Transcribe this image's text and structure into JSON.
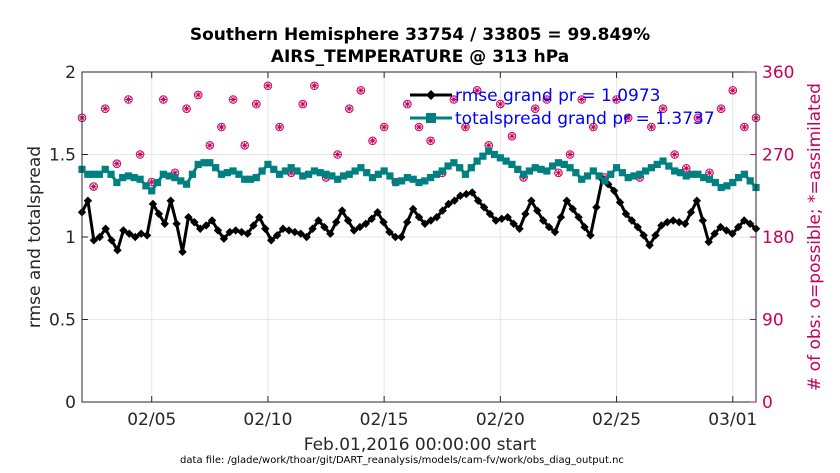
{
  "chart_data": {
    "type": "line",
    "title": "Southern Hemisphere 33754 / 33805 = 99.849%",
    "subtitle": "AIRS_TEMPERATURE @ 313 hPa",
    "xlabel": "Feb.01,2016 00:00:00 start",
    "ylabel": "rmse and totalspread",
    "y2label": "# of obs: o=possible; *=assimilated",
    "footer": "data file: /glade/work/thoar/git/DART_reanalysis/models/cam-fv/work/obs_diag_output.nc",
    "xlim": [
      1,
      30
    ],
    "ylim": [
      0,
      2
    ],
    "y2lim": [
      0,
      360
    ],
    "x_ticks": [
      4,
      9,
      14,
      19,
      24,
      29
    ],
    "x_tick_labels": [
      "02/05",
      "02/10",
      "02/15",
      "02/20",
      "02/25",
      "03/01"
    ],
    "y_ticks": [
      0,
      0.5,
      1,
      1.5,
      2
    ],
    "y_tick_labels": [
      "0",
      "0.5",
      "1",
      "1.5",
      "2"
    ],
    "y2_ticks": [
      0,
      90,
      180,
      270,
      360
    ],
    "y2_tick_labels": [
      "0",
      "90",
      "180",
      "270",
      "360"
    ],
    "legend_position": "top-right",
    "grid": true,
    "series": [
      {
        "name": "rmse grand pr = 1.0973",
        "color": "#000000",
        "marker": "diamond",
        "anchors_x": [
          1.0,
          1.25,
          1.5,
          2.0,
          2.5,
          3.0,
          3.5,
          4.0,
          4.5,
          5.0,
          5.5,
          6.0,
          6.5,
          7.0,
          7.5,
          8.0,
          8.5,
          9.0,
          9.5,
          10.0,
          10.5,
          11.0,
          11.5,
          12.0,
          12.5,
          13.0,
          13.5,
          14.0,
          14.5,
          15.0,
          15.5,
          16.0,
          16.5,
          17.0,
          17.5,
          18.0,
          18.5,
          19.0,
          19.5,
          20.0,
          20.5,
          21.0,
          21.5,
          22.0,
          22.5,
          23.0,
          23.5,
          24.0,
          24.5,
          25.0,
          25.5,
          26.0,
          26.5,
          27.0,
          27.5,
          28.0,
          28.5,
          29.0,
          29.5,
          30.0
        ],
        "anchors_y": [
          1.15,
          1.22,
          0.98,
          1.05,
          0.92,
          1.04,
          1.02,
          1.2,
          1.08,
          1.22,
          0.91,
          1.12,
          1.05,
          1.1,
          0.99,
          1.04,
          1.02,
          1.12,
          0.98,
          1.05,
          1.03,
          1.0,
          1.1,
          1.02,
          1.16,
          1.04,
          1.08,
          1.15,
          1.03,
          1.0,
          1.17,
          1.08,
          1.12,
          1.2,
          1.25,
          1.27,
          1.18,
          1.1,
          1.12,
          1.05,
          1.22,
          1.1,
          1.03,
          1.22,
          1.12,
          1.01,
          1.35,
          1.28,
          1.14,
          1.06,
          0.95,
          1.07,
          1.1,
          1.08,
          1.22,
          0.97,
          1.06,
          1.02,
          1.1,
          1.05
        ],
        "values": [
          1.15,
          1.22,
          0.98,
          1.0,
          1.05,
          0.98,
          0.92,
          1.04,
          1.02,
          1.0,
          1.02,
          1.01,
          1.2,
          1.14,
          1.08,
          1.22,
          1.08,
          0.91,
          1.12,
          1.09,
          1.05,
          1.07,
          1.1,
          1.04,
          0.99,
          1.03,
          1.04,
          1.03,
          1.02,
          1.07,
          1.12,
          1.05,
          0.98,
          1.01,
          1.05,
          1.04,
          1.03,
          1.02,
          1.0,
          1.05,
          1.1,
          1.06,
          1.02,
          1.09,
          1.16,
          1.1,
          1.04,
          1.06,
          1.08,
          1.11,
          1.15,
          1.09,
          1.03,
          1.0,
          1.0,
          1.09,
          1.17,
          1.12,
          1.08,
          1.1,
          1.12,
          1.16,
          1.2,
          1.22,
          1.25,
          1.26,
          1.27,
          1.22,
          1.18,
          1.14,
          1.1,
          1.11,
          1.12,
          1.08,
          1.05,
          1.14,
          1.22,
          1.16,
          1.1,
          1.06,
          1.03,
          1.12,
          1.22,
          1.17,
          1.12,
          1.06,
          1.01,
          1.18,
          1.35,
          1.32,
          1.28,
          1.21,
          1.14,
          1.1,
          1.06,
          1.01,
          0.95,
          1.01,
          1.07,
          1.09,
          1.1,
          1.09,
          1.08,
          1.15,
          1.22,
          1.1,
          0.97,
          1.02,
          1.06,
          1.04,
          1.02,
          1.06,
          1.1,
          1.08,
          1.05
        ]
      },
      {
        "name": "totalspread grand pr = 1.3737",
        "color": "#008080",
        "marker": "square",
        "anchors_x": [
          1.0,
          1.5,
          2.0,
          2.5,
          3.0,
          3.5,
          4.0,
          4.5,
          5.0,
          5.5,
          6.0,
          6.5,
          7.0,
          7.5,
          8.0,
          8.5,
          9.0,
          9.5,
          10.0,
          10.5,
          11.0,
          11.5,
          12.0,
          12.5,
          13.0,
          13.5,
          14.0,
          14.5,
          15.0,
          15.5,
          16.0,
          16.5,
          17.0,
          17.5,
          18.0,
          18.5,
          19.0,
          19.5,
          20.0,
          20.5,
          21.0,
          21.5,
          22.0,
          22.5,
          23.0,
          23.5,
          24.0,
          24.5,
          25.0,
          25.5,
          26.0,
          26.5,
          27.0,
          27.5,
          28.0,
          28.5,
          29.0,
          29.5,
          30.0
        ],
        "anchors_y": [
          1.41,
          1.38,
          1.41,
          1.33,
          1.37,
          1.35,
          1.28,
          1.38,
          1.36,
          1.32,
          1.44,
          1.45,
          1.38,
          1.4,
          1.35,
          1.36,
          1.44,
          1.38,
          1.42,
          1.37,
          1.4,
          1.38,
          1.35,
          1.38,
          1.42,
          1.36,
          1.4,
          1.33,
          1.36,
          1.33,
          1.36,
          1.4,
          1.45,
          1.38,
          1.46,
          1.52,
          1.48,
          1.44,
          1.38,
          1.42,
          1.4,
          1.45,
          1.42,
          1.35,
          1.4,
          1.34,
          1.42,
          1.36,
          1.38,
          1.42,
          1.46,
          1.4,
          1.37,
          1.38,
          1.35,
          1.3,
          1.33,
          1.38,
          1.3
        ],
        "values": [
          1.41,
          1.38,
          1.38,
          1.38,
          1.41,
          1.38,
          1.33,
          1.36,
          1.37,
          1.36,
          1.35,
          1.31,
          1.28,
          1.33,
          1.38,
          1.37,
          1.36,
          1.34,
          1.32,
          1.38,
          1.44,
          1.45,
          1.45,
          1.42,
          1.38,
          1.39,
          1.4,
          1.38,
          1.35,
          1.35,
          1.36,
          1.4,
          1.44,
          1.41,
          1.38,
          1.4,
          1.42,
          1.4,
          1.37,
          1.38,
          1.4,
          1.39,
          1.38,
          1.37,
          1.35,
          1.37,
          1.38,
          1.4,
          1.42,
          1.39,
          1.36,
          1.38,
          1.4,
          1.37,
          1.33,
          1.34,
          1.36,
          1.35,
          1.33,
          1.34,
          1.36,
          1.38,
          1.4,
          1.43,
          1.45,
          1.42,
          1.38,
          1.42,
          1.46,
          1.49,
          1.52,
          1.5,
          1.48,
          1.46,
          1.44,
          1.41,
          1.38,
          1.4,
          1.42,
          1.41,
          1.4,
          1.43,
          1.45,
          1.44,
          1.42,
          1.39,
          1.35,
          1.37,
          1.4,
          1.37,
          1.34,
          1.38,
          1.42,
          1.39,
          1.36,
          1.37,
          1.38,
          1.4,
          1.42,
          1.44,
          1.46,
          1.43,
          1.4,
          1.39,
          1.37,
          1.38,
          1.38,
          1.36,
          1.35,
          1.33,
          1.3,
          1.31,
          1.33,
          1.36,
          1.38,
          1.34,
          1.3
        ]
      }
    ],
    "obs_counts": {
      "name": "# of obs (o=possible, *=assimilated)",
      "color": "#c8005a",
      "axis": "right",
      "anchors_x": [
        1.0,
        1.5,
        2.0,
        2.5,
        3.0,
        3.5,
        4.0,
        4.5,
        5.0,
        5.5,
        6.0,
        6.5,
        7.0,
        7.5,
        8.0,
        8.5,
        9.0,
        9.5,
        10.0,
        10.5,
        11.0,
        11.5,
        12.0,
        12.5,
        13.0,
        13.5,
        14.0,
        14.5,
        15.0,
        15.5,
        16.0,
        16.5,
        17.0,
        17.5,
        18.0,
        18.5,
        19.0,
        19.5,
        20.0,
        20.5,
        21.0,
        21.5,
        22.0,
        22.5,
        23.0,
        23.5,
        24.0,
        24.5,
        25.0,
        25.5,
        26.0,
        26.5,
        27.0,
        27.5,
        28.0,
        28.5,
        29.0,
        29.5,
        30.0
      ],
      "anchors_y": [
        310,
        235,
        320,
        260,
        330,
        270,
        240,
        330,
        250,
        320,
        335,
        280,
        300,
        330,
        280,
        325,
        345,
        300,
        250,
        325,
        345,
        245,
        270,
        320,
        340,
        285,
        300,
        240,
        325,
        300,
        285,
        250,
        330,
        300,
        340,
        280,
        325,
        290,
        245,
        320,
        330,
        250,
        270,
        330,
        300,
        245,
        330,
        310,
        245,
        300,
        320,
        270,
        255,
        310,
        250,
        320,
        340,
        300,
        310
      ]
    }
  }
}
